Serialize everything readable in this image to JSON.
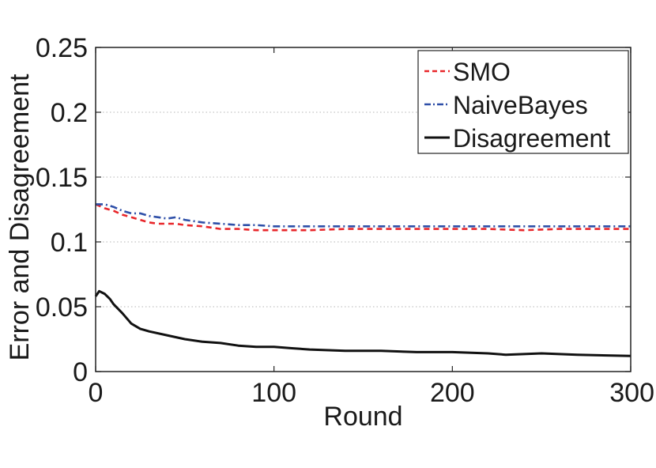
{
  "chart_data": {
    "type": "line",
    "title": "",
    "xlabel": "Round",
    "ylabel": "Error and Disagreement",
    "xlim": [
      0,
      300
    ],
    "ylim": [
      0,
      0.25
    ],
    "xticks": [
      0,
      100,
      200,
      300
    ],
    "xtick_labels": [
      "0",
      "100",
      "200",
      "300"
    ],
    "yticks": [
      0,
      0.05,
      0.1,
      0.15,
      0.2,
      0.25
    ],
    "ytick_labels": [
      "0",
      "0.05",
      "0.1",
      "0.15",
      "0.2",
      "0.25"
    ],
    "grid": true,
    "legend_position": "top-right",
    "series": [
      {
        "name": "SMO",
        "color": "#e8262a",
        "style": "dashed",
        "x": [
          0,
          5,
          10,
          15,
          20,
          25,
          30,
          35,
          40,
          45,
          50,
          60,
          70,
          80,
          90,
          100,
          120,
          140,
          160,
          180,
          200,
          220,
          240,
          260,
          280,
          300
        ],
        "y": [
          0.129,
          0.126,
          0.124,
          0.121,
          0.119,
          0.117,
          0.115,
          0.114,
          0.114,
          0.114,
          0.113,
          0.112,
          0.11,
          0.11,
          0.109,
          0.109,
          0.109,
          0.11,
          0.11,
          0.11,
          0.11,
          0.11,
          0.109,
          0.11,
          0.11,
          0.11
        ]
      },
      {
        "name": "NaiveBayes",
        "color": "#2e4fa8",
        "style": "dashdot",
        "x": [
          0,
          5,
          10,
          15,
          20,
          25,
          30,
          35,
          40,
          45,
          50,
          60,
          70,
          80,
          90,
          100,
          120,
          140,
          160,
          180,
          200,
          220,
          240,
          260,
          280,
          300
        ],
        "y": [
          0.129,
          0.129,
          0.127,
          0.124,
          0.122,
          0.122,
          0.12,
          0.119,
          0.118,
          0.119,
          0.117,
          0.115,
          0.114,
          0.113,
          0.113,
          0.112,
          0.112,
          0.112,
          0.112,
          0.112,
          0.112,
          0.112,
          0.112,
          0.112,
          0.112,
          0.112
        ]
      },
      {
        "name": "Disagreement",
        "color": "#111111",
        "style": "solid",
        "x": [
          0,
          2,
          5,
          8,
          10,
          15,
          20,
          25,
          30,
          40,
          50,
          60,
          70,
          80,
          90,
          100,
          110,
          120,
          140,
          160,
          180,
          200,
          220,
          230,
          250,
          270,
          300
        ],
        "y": [
          0.058,
          0.062,
          0.06,
          0.056,
          0.052,
          0.045,
          0.037,
          0.033,
          0.031,
          0.028,
          0.025,
          0.023,
          0.022,
          0.02,
          0.019,
          0.019,
          0.018,
          0.017,
          0.016,
          0.016,
          0.015,
          0.015,
          0.014,
          0.013,
          0.014,
          0.013,
          0.012
        ]
      }
    ]
  }
}
